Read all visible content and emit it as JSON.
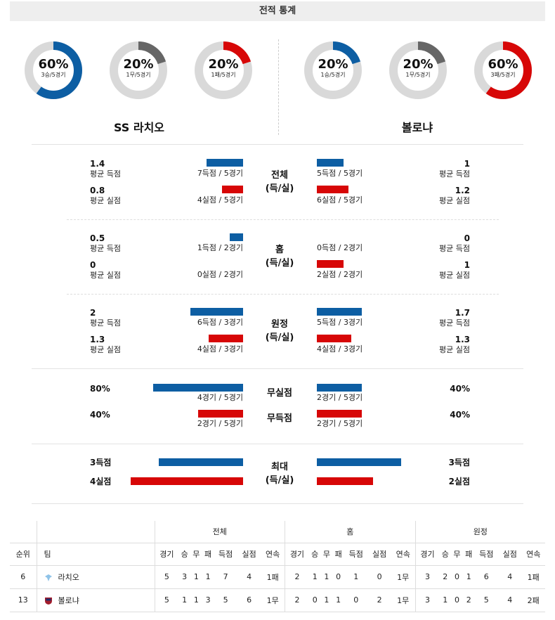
{
  "title": "전적 통계",
  "donuts": [
    {
      "pct": "60%",
      "sub": "3승/5경기",
      "value": 60,
      "color": "#0d5ea3"
    },
    {
      "pct": "20%",
      "sub": "1무/5경기",
      "value": 20,
      "color": "#666666"
    },
    {
      "pct": "20%",
      "sub": "1패/5경기",
      "value": 20,
      "color": "#d70707"
    },
    {
      "pct": "20%",
      "sub": "1승/5경기",
      "value": 20,
      "color": "#0d5ea3"
    },
    {
      "pct": "20%",
      "sub": "1무/5경기",
      "value": 20,
      "color": "#666666"
    },
    {
      "pct": "60%",
      "sub": "3패/5경기",
      "value": 60,
      "color": "#d70707"
    }
  ],
  "home_team": "SS 라치오",
  "away_team": "볼로냐",
  "sections": [
    {
      "center": [
        "전체",
        "(득/실)"
      ],
      "left": [
        {
          "val": "1.4",
          "lbl": "평균 득점",
          "cap": "7득점 / 5경기",
          "bar": 1.4
        },
        {
          "val": "0.8",
          "lbl": "평균 실점",
          "cap": "4실점 / 5경기",
          "bar": 0.8
        }
      ],
      "right": [
        {
          "val": "1",
          "lbl": "평균 득점",
          "cap": "5득점 / 5경기",
          "bar": 1
        },
        {
          "val": "1.2",
          "lbl": "평균 실점",
          "cap": "6실점 / 5경기",
          "bar": 1.2
        }
      ]
    },
    {
      "center": [
        "홈",
        "(득/실)"
      ],
      "left": [
        {
          "val": "0.5",
          "lbl": "평균 득점",
          "cap": "1득점 / 2경기",
          "bar": 0.5
        },
        {
          "val": "0",
          "lbl": "평균 실점",
          "cap": "0실점 / 2경기",
          "bar": 0
        }
      ],
      "right": [
        {
          "val": "0",
          "lbl": "평균 득점",
          "cap": "0득점 / 2경기",
          "bar": 0
        },
        {
          "val": "1",
          "lbl": "평균 실점",
          "cap": "2실점 / 2경기",
          "bar": 1
        }
      ]
    },
    {
      "center": [
        "원정",
        "(득/실)"
      ],
      "left": [
        {
          "val": "2",
          "lbl": "평균 득점",
          "cap": "6득점 / 3경기",
          "bar": 2
        },
        {
          "val": "1.3",
          "lbl": "평균 실점",
          "cap": "4실점 / 3경기",
          "bar": 1.3
        }
      ],
      "right": [
        {
          "val": "1.7",
          "lbl": "평균 득점",
          "cap": "5득점 / 3경기",
          "bar": 1.7
        },
        {
          "val": "1.3",
          "lbl": "평균 실점",
          "cap": "4실점 / 3경기",
          "bar": 1.3
        }
      ]
    }
  ],
  "clean": {
    "left": [
      {
        "val": "80%",
        "cap": "4경기 / 5경기",
        "bar": 0.8
      },
      {
        "val": "40%",
        "cap": "2경기 / 5경기",
        "bar": 0.4
      }
    ],
    "right": [
      {
        "val": "40%",
        "cap": "2경기 / 5경기",
        "bar": 0.4
      },
      {
        "val": "40%",
        "cap": "2경기 / 5경기",
        "bar": 0.4
      }
    ],
    "center": [
      "무실점",
      "무득점"
    ]
  },
  "maxes": {
    "center": [
      "최대",
      "(득/실)"
    ],
    "left": [
      {
        "val": "3득점",
        "bar": 3
      },
      {
        "val": "4실점",
        "bar": 4
      }
    ],
    "right": [
      {
        "val": "3득점",
        "bar": 3
      },
      {
        "val": "2실점",
        "bar": 2
      }
    ]
  },
  "table": {
    "groups": [
      "전체",
      "홈",
      "원정"
    ],
    "rank_header": "순위",
    "team_header": "팀",
    "cols": [
      "경기",
      "승",
      "무",
      "패",
      "득점",
      "실점",
      "연속"
    ],
    "rows": [
      {
        "rank": "6",
        "team": "라치오",
        "cells": [
          "5",
          "3",
          "1",
          "1",
          "7",
          "4",
          "1패",
          "2",
          "1",
          "1",
          "0",
          "1",
          "0",
          "1무",
          "3",
          "2",
          "0",
          "1",
          "6",
          "4",
          "1패"
        ]
      },
      {
        "rank": "13",
        "team": "볼로냐",
        "cells": [
          "5",
          "1",
          "1",
          "3",
          "5",
          "6",
          "1무",
          "2",
          "0",
          "1",
          "1",
          "0",
          "2",
          "1무",
          "3",
          "1",
          "0",
          "2",
          "5",
          "4",
          "2패"
        ]
      }
    ]
  }
}
